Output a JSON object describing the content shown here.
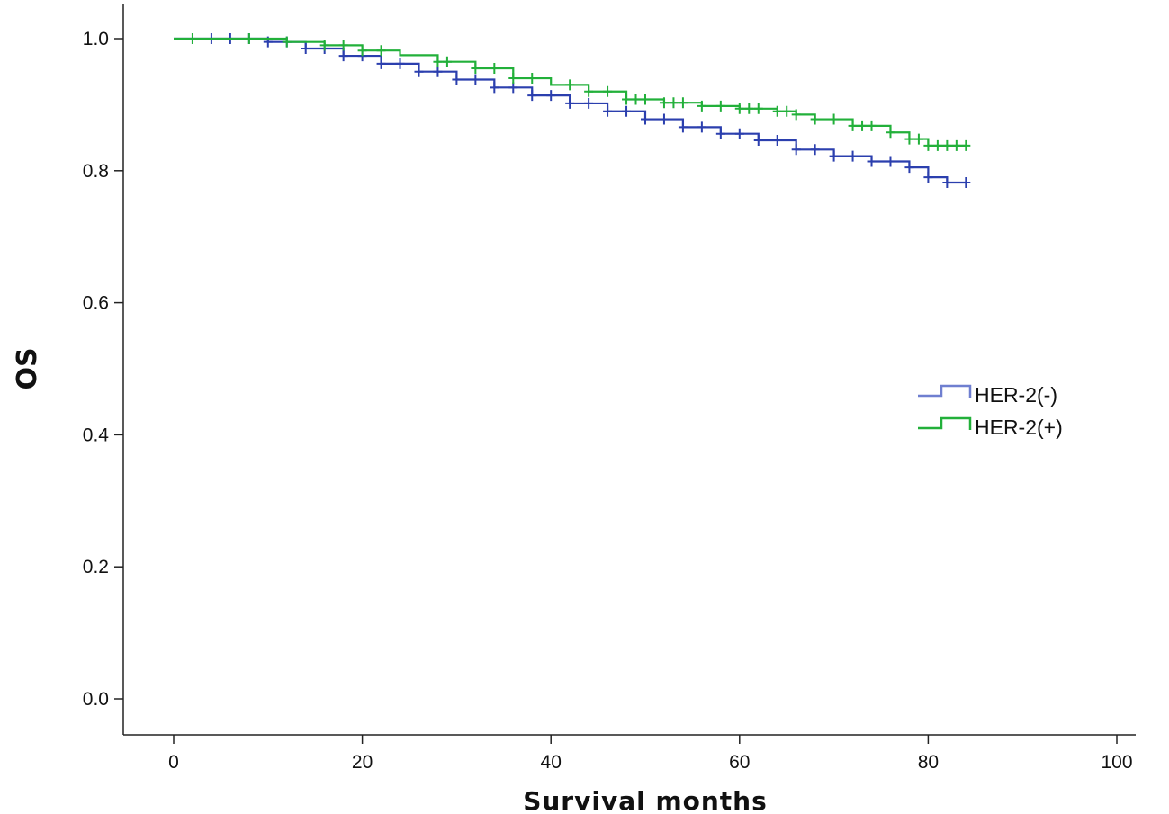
{
  "chart_data": {
    "type": "line",
    "subtype": "kaplan-meier",
    "title": "",
    "xlabel": "Survival months",
    "ylabel": "OS",
    "xlim": [
      0,
      100
    ],
    "ylim": [
      0.0,
      1.0
    ],
    "xticks": [
      0,
      20,
      40,
      60,
      80,
      100
    ],
    "yticks": [
      0.0,
      0.2,
      0.4,
      0.6,
      0.8,
      1.0
    ],
    "xtick_labels": [
      "0",
      "20",
      "40",
      "60",
      "80",
      "100"
    ],
    "ytick_labels": [
      "0.0",
      "0.2",
      "0.4",
      "0.6",
      "0.8",
      "1.0"
    ],
    "grid": false,
    "legend_position": "right",
    "series": [
      {
        "name": "HER-2(-)",
        "color": "#2b3fae",
        "legend_color": "#6f7fd0",
        "x": [
          0,
          10,
          14,
          18,
          22,
          26,
          30,
          34,
          38,
          42,
          46,
          50,
          54,
          58,
          62,
          66,
          70,
          74,
          78,
          80,
          82,
          84
        ],
        "y": [
          1.0,
          0.995,
          0.985,
          0.974,
          0.962,
          0.95,
          0.938,
          0.926,
          0.914,
          0.902,
          0.89,
          0.878,
          0.866,
          0.856,
          0.846,
          0.832,
          0.822,
          0.814,
          0.805,
          0.79,
          0.782,
          0.782
        ],
        "censor_x": [
          2,
          4,
          6,
          8,
          10,
          12,
          14,
          16,
          18,
          20,
          22,
          24,
          26,
          28,
          30,
          32,
          34,
          36,
          38,
          40,
          42,
          44,
          46,
          48,
          50,
          52,
          54,
          56,
          58,
          60,
          62,
          64,
          66,
          68,
          70,
          72,
          74,
          76,
          78,
          80,
          82,
          84
        ]
      },
      {
        "name": "HER-2(+)",
        "color": "#22b03a",
        "legend_color": "#22b03a",
        "x": [
          0,
          12,
          16,
          20,
          24,
          28,
          32,
          36,
          40,
          44,
          48,
          52,
          56,
          60,
          64,
          66,
          68,
          72,
          76,
          78,
          80,
          84
        ],
        "y": [
          1.0,
          0.995,
          0.99,
          0.982,
          0.975,
          0.965,
          0.955,
          0.94,
          0.93,
          0.92,
          0.908,
          0.903,
          0.898,
          0.894,
          0.89,
          0.885,
          0.878,
          0.868,
          0.858,
          0.848,
          0.838,
          0.838
        ],
        "censor_x": [
          2,
          8,
          12,
          16,
          18,
          20,
          22,
          28,
          29,
          32,
          34,
          36,
          38,
          42,
          44,
          46,
          48,
          49,
          50,
          52,
          53,
          54,
          56,
          58,
          60,
          61,
          62,
          64,
          65,
          66,
          68,
          70,
          72,
          73,
          74,
          76,
          78,
          79,
          80,
          81,
          82,
          83,
          84
        ]
      }
    ]
  }
}
